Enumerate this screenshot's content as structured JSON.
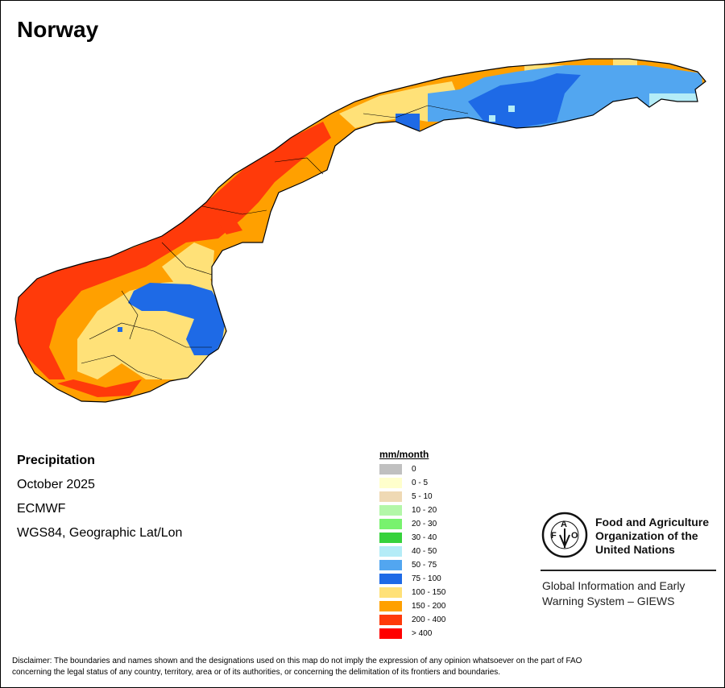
{
  "title": "Norway",
  "info": {
    "variable": "Precipitation",
    "period": "October 2025",
    "source": "ECMWF",
    "projection": "WGS84, Geographic Lat/Lon"
  },
  "legend": {
    "title": "mm/month",
    "items": [
      {
        "label": "0",
        "color": "#c0c0c0"
      },
      {
        "label": "0 - 5",
        "color": "#ffffcc"
      },
      {
        "label": "5 - 10",
        "color": "#efd9b4"
      },
      {
        "label": "10 - 20",
        "color": "#b3f7a8"
      },
      {
        "label": "20 - 30",
        "color": "#78f26e"
      },
      {
        "label": "30 - 40",
        "color": "#36d23c"
      },
      {
        "label": "40 - 50",
        "color": "#b4ecf7"
      },
      {
        "label": "50 - 75",
        "color": "#52a6f0"
      },
      {
        "label": "75 - 100",
        "color": "#1e6ae6"
      },
      {
        "label": "100 - 150",
        "color": "#ffe178"
      },
      {
        "label": "150 - 200",
        "color": "#ffa000"
      },
      {
        "label": "200 - 400",
        "color": "#ff3a0a"
      },
      {
        "label": "> 400",
        "color": "#ff0000"
      }
    ]
  },
  "logo": {
    "name_line1": "Food and Agriculture",
    "name_line2": "Organization of the",
    "name_line3": "United Nations",
    "emblem_text": "FAO FIAT PANIS",
    "giews_line1": "Global Information and Early",
    "giews_line2": "Warning System – GIEWS"
  },
  "disclaimer_line1": "Disclaimer: The boundaries and names shown and the designations used on this map do not imply the expression of any opinion whatsoever on the part of FAO",
  "disclaimer_line2": "concerning the legal status of any country, territory, area or of its authorities, or concerning the delimitation of its frontiers and boundaries."
}
